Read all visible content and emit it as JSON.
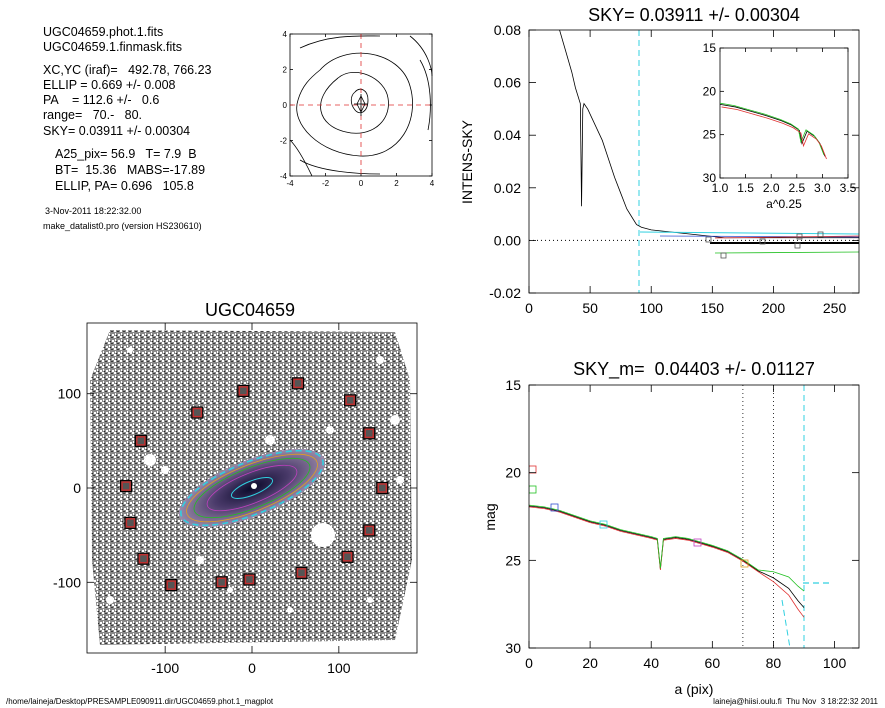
{
  "header": {
    "lines": [
      "UGC04659.phot.1.fits",
      "UGC04659.1.finmask.fits",
      "XC,YC (iraf)=   492.78, 766.23",
      "ELLIP = 0.669 +/- 0.008",
      "PA    = 112.6 +/-   0.6",
      "range=   70.-   80.",
      "SKY= 0.03911 +/- 0.00304",
      "A25_pix= 56.9   T= 7.9  B",
      "BT=  15.36   MABS=-17.89",
      "ELLIP, PA= 0.696   105.8"
    ],
    "date": "3-Nov-2011 18:22:32.00",
    "program": "make_datalist0.pro (version HS230610)"
  },
  "footer": {
    "left": "/home/laineja/Desktop/PRESAMPLE090911.dir/UGC04659.phot.1_magplot",
    "right": "laineja@hiisi.oulu.fi  Thu Nov  3 18:22:32 2011"
  },
  "colors": {
    "black": "#000000",
    "red": "#e03030",
    "green": "#20c020",
    "blue": "#3050d0",
    "cyan": "#30d0e0",
    "magenta": "#c040c0",
    "grey": "#707070"
  },
  "chart_data": [
    {
      "id": "contour",
      "type": "contour",
      "xlim": [
        -4,
        4
      ],
      "ylim": [
        -4,
        4
      ],
      "xticks": [
        "-4",
        "-2",
        "0",
        "2",
        "4"
      ],
      "yticks": [
        "4",
        "2",
        "0",
        "-2",
        "-4"
      ],
      "xtick_values": [
        -4,
        -2,
        0,
        2,
        4
      ],
      "ytick_values": [
        4,
        2,
        0,
        -2,
        -4
      ]
    },
    {
      "id": "sky",
      "type": "line",
      "title": "SKY= 0.03911 +/- 0.00304",
      "ylabel": "INTENS-SKY",
      "xlim": [
        0,
        270
      ],
      "ylim": [
        -0.02,
        0.08
      ],
      "xticks": [
        "0",
        "50",
        "100",
        "150",
        "200",
        "250"
      ],
      "yticks": [
        "0.08",
        "0.06",
        "0.04",
        "0.02",
        "0.00",
        "-0.02"
      ],
      "xtick_values": [
        0,
        50,
        100,
        150,
        200,
        250
      ],
      "ytick_values": [
        0.08,
        0.06,
        0.04,
        0.02,
        0.0,
        -0.02
      ],
      "vline_x": 90,
      "profile_x": [
        25,
        30,
        35,
        38,
        40,
        42,
        43,
        44,
        45,
        48,
        52,
        56,
        60,
        65,
        70,
        75,
        80,
        84,
        88,
        92,
        100,
        120,
        140,
        160,
        180,
        200,
        220,
        240,
        270
      ],
      "profile_y": [
        0.08,
        0.072,
        0.064,
        0.058,
        0.055,
        0.052,
        0.013,
        0.05,
        0.052,
        0.05,
        0.046,
        0.042,
        0.038,
        0.031,
        0.024,
        0.018,
        0.012,
        0.009,
        0.006,
        0.005,
        0.004,
        0.003,
        0.002,
        0.001,
        0.001,
        0.001,
        0.001,
        0.001,
        0.001
      ]
    },
    {
      "id": "inset",
      "type": "line",
      "xlabel": "a^0.25",
      "xlim": [
        1.0,
        3.5
      ],
      "ylim": [
        30,
        15
      ],
      "xticks": [
        "1.0",
        "1.5",
        "2.0",
        "2.5",
        "3.0",
        "3.5"
      ],
      "yticks": [
        "15",
        "20",
        "25",
        "30"
      ],
      "xtick_values": [
        1.0,
        1.5,
        2.0,
        2.5,
        3.0,
        3.5
      ],
      "ytick_values": [
        15,
        20,
        25,
        30
      ],
      "x": [
        1.0,
        1.3,
        1.6,
        1.9,
        2.2,
        2.4,
        2.55,
        2.6,
        2.7,
        2.85,
        2.95,
        3.05
      ],
      "y": [
        21.5,
        21.8,
        22.3,
        22.8,
        23.4,
        23.9,
        24.5,
        26.0,
        24.6,
        25.2,
        26.0,
        27.5
      ]
    },
    {
      "id": "image",
      "type": "image",
      "title": "UGC04659",
      "xlim": [
        -190,
        190
      ],
      "ylim": [
        -175,
        175
      ],
      "xticks": [
        "-100",
        "0",
        "100"
      ],
      "yticks": [
        "100",
        "0",
        "-100"
      ],
      "xtick_values": [
        -100,
        0,
        100
      ],
      "ytick_values": [
        100,
        0,
        -100
      ],
      "mask_boxes": [
        [
          -10,
          103
        ],
        [
          53,
          111
        ],
        [
          -63,
          80
        ],
        [
          113,
          93
        ],
        [
          -128,
          50
        ],
        [
          135,
          58
        ],
        [
          -145,
          2
        ],
        [
          150,
          0
        ],
        [
          -140,
          -37
        ],
        [
          135,
          -45
        ],
        [
          -125,
          -75
        ],
        [
          110,
          -73
        ],
        [
          57,
          -90
        ],
        [
          -93,
          -103
        ],
        [
          -35,
          -100
        ],
        [
          -3,
          -97
        ]
      ]
    },
    {
      "id": "mag",
      "type": "line",
      "title": "SKY_m=  0.04403 +/- 0.01127",
      "xlabel": "a (pix)",
      "ylabel": "mag",
      "xlim": [
        0,
        108
      ],
      "ylim": [
        30,
        15
      ],
      "xticks": [
        "0",
        "20",
        "40",
        "60",
        "80",
        "100"
      ],
      "yticks": [
        "15",
        "20",
        "25",
        "30"
      ],
      "xtick_values": [
        0,
        20,
        40,
        60,
        80,
        100
      ],
      "ytick_values": [
        15,
        20,
        25,
        30
      ],
      "vlines_dotted": [
        70,
        80
      ],
      "vline_dashed": 90,
      "x": [
        0,
        5,
        10,
        15,
        20,
        25,
        30,
        35,
        40,
        42,
        43,
        44,
        48,
        52,
        56,
        60,
        65,
        70,
        75,
        80,
        85,
        88,
        90
      ],
      "y": [
        21.9,
        22.0,
        22.2,
        22.5,
        22.8,
        23.0,
        23.3,
        23.5,
        23.7,
        23.8,
        25.5,
        23.8,
        23.7,
        23.8,
        24.0,
        24.2,
        24.5,
        25.0,
        25.6,
        26.0,
        26.6,
        27.3,
        27.7
      ]
    }
  ]
}
